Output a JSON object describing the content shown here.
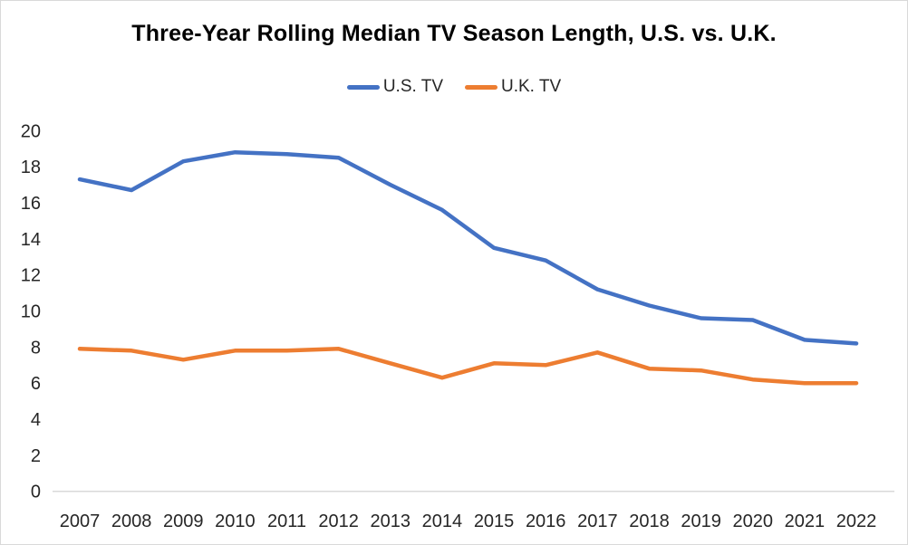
{
  "title": "Three-Year Rolling Median TV Season Length, U.S. vs. U.K.",
  "legend": {
    "items": [
      {
        "label": "U.S. TV",
        "color": "#4472C4"
      },
      {
        "label": "U.K. TV",
        "color": "#ED7D31"
      }
    ]
  },
  "axis": {
    "tick_color": "#262626",
    "axis_line_color": "#d9d9d9"
  },
  "chart_data": {
    "type": "line",
    "title": "Three-Year Rolling Median TV Season Length, U.S. vs. U.K.",
    "x": [
      2007,
      2008,
      2009,
      2010,
      2011,
      2012,
      2013,
      2014,
      2015,
      2016,
      2017,
      2018,
      2019,
      2020,
      2021,
      2022
    ],
    "series": [
      {
        "name": "U.S. TV",
        "color": "#4472C4",
        "values": [
          17.3,
          16.7,
          18.3,
          18.8,
          18.7,
          18.5,
          17.0,
          15.6,
          13.5,
          12.8,
          11.2,
          10.3,
          9.6,
          9.5,
          8.4,
          8.2
        ]
      },
      {
        "name": "U.K. TV",
        "color": "#ED7D31",
        "values": [
          7.9,
          7.8,
          7.3,
          7.8,
          7.8,
          7.9,
          7.1,
          6.3,
          7.1,
          7.0,
          7.7,
          6.8,
          6.7,
          6.2,
          6.0,
          6.0
        ]
      }
    ],
    "xlabel": "",
    "ylabel": "",
    "ylim": [
      0,
      20
    ],
    "ytick_step": 2,
    "grid": false,
    "legend_position": "top"
  }
}
